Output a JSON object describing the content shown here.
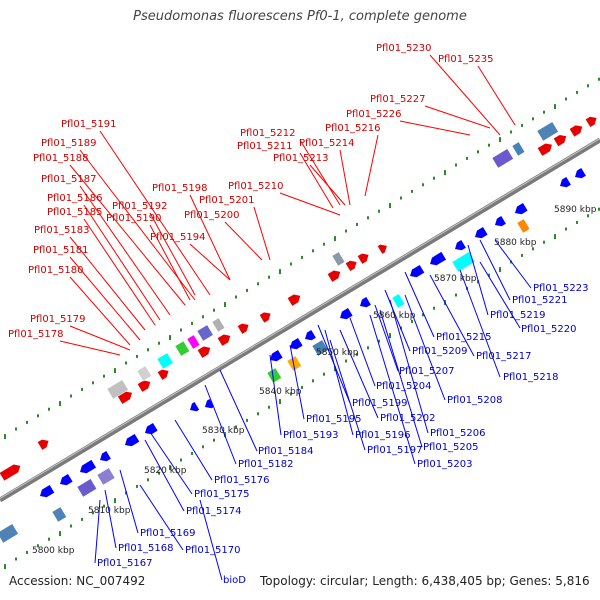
{
  "title": "Pseudomonas fluorescens Pf0-1, complete genome",
  "footer": {
    "accession": "Accession: NC_007492",
    "summary": "Topology: circular; Length: 6,438,405 bp; Genes: 5,816"
  },
  "colors": {
    "top_labels": "#cc0000",
    "bottom_labels": "#0000cc",
    "backbone": "#8e8e8e",
    "dots": "#2a8a2a"
  },
  "kbp_ticks": [
    "5800 kbp",
    "5810 kbp",
    "5820 kbp",
    "5830 kbp",
    "5840 kbp",
    "5850 kbp",
    "5860 kbp",
    "5870 kbp",
    "5880 kbp",
    "5890 kbp"
  ],
  "top_labels": [
    "Pfl01_5230",
    "Pfl01_5235",
    "Pfl01_5227",
    "Pfl01_5226",
    "Pfl01_5216",
    "Pfl01_5212",
    "Pfl01_5214",
    "Pfl01_5211",
    "Pfl01_5213",
    "Pfl01_5191",
    "Pfl01_5189",
    "Pfl01_5188",
    "Pfl01_5187",
    "Pfl01_5198",
    "Pfl01_5210",
    "Pfl01_5186",
    "Pfl01_5192",
    "Pfl01_5201",
    "Pfl01_5185",
    "Pfl01_5190",
    "Pfl01_5200",
    "Pfl01_5183",
    "Pfl01_5194",
    "Pfl01_5181",
    "Pfl01_5180",
    "Pfl01_5179",
    "Pfl01_5178"
  ],
  "bottom_labels": [
    "Pfl01_5223",
    "Pfl01_5221",
    "Pfl01_5219",
    "Pfl01_5220",
    "Pfl01_5215",
    "Pfl01_5209",
    "Pfl01_5217",
    "Pfl01_5218",
    "Pfl01_5207",
    "Pfl01_5204",
    "Pfl01_5208",
    "Pfl01_5199",
    "Pfl01_5202",
    "Pfl01_5195",
    "Pfl01_5206",
    "Pfl01_5193",
    "Pfl01_5196",
    "Pfl01_5205",
    "Pfl01_5197",
    "Pfl01_5184",
    "Pfl01_5203",
    "Pfl01_5182",
    "Pfl01_5176",
    "Pfl01_5175",
    "Pfl01_5174",
    "Pfl01_5169",
    "Pfl01_5170",
    "Pfl01_5168",
    "Pfl01_5167",
    "bioD"
  ]
}
